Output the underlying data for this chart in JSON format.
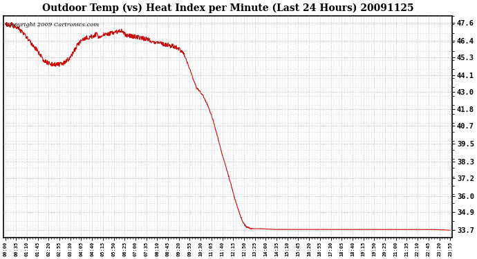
{
  "title": "Outdoor Temp (vs) Heat Index per Minute (Last 24 Hours) 20091125",
  "copyright_text": "Copyright 2009 Cartronics.com",
  "line_color": "#cc0000",
  "background_color": "#ffffff",
  "plot_bg_color": "#ffffff",
  "grid_color": "#999999",
  "yticks": [
    33.7,
    34.9,
    36.0,
    37.2,
    38.3,
    39.5,
    40.7,
    41.8,
    43.0,
    44.1,
    45.3,
    46.4,
    47.6
  ],
  "ylim": [
    33.2,
    48.1
  ],
  "xtick_labels_major": [
    "00:00",
    "00:35",
    "01:10",
    "01:45",
    "02:20",
    "02:55",
    "03:30",
    "04:05",
    "04:40",
    "05:15",
    "05:50",
    "06:25",
    "07:00",
    "07:35",
    "08:10",
    "08:45",
    "09:20",
    "09:55",
    "10:30",
    "11:05",
    "11:40",
    "12:15",
    "12:50",
    "13:25",
    "14:00",
    "14:35",
    "15:10",
    "15:45",
    "16:20",
    "16:55",
    "17:30",
    "18:05",
    "18:40",
    "19:15",
    "19:50",
    "20:25",
    "21:00",
    "21:35",
    "22:10",
    "22:45",
    "23:20",
    "23:55"
  ],
  "n_points": 1440,
  "y_data_keyframes": {
    "0": 47.5,
    "5": 47.5,
    "15": 47.4,
    "20": 47.55,
    "25": 47.4,
    "35": 47.35,
    "45": 47.2,
    "55": 47.0,
    "65": 46.8,
    "75": 46.5,
    "90": 46.1,
    "105": 45.7,
    "115": 45.4,
    "125": 45.1,
    "140": 44.9,
    "155": 44.82,
    "175": 44.82,
    "185": 44.85,
    "195": 45.0,
    "210": 45.3,
    "220": 45.6,
    "230": 46.0,
    "240": 46.3,
    "250": 46.45,
    "260": 46.6,
    "270": 46.65,
    "280": 46.7,
    "285": 46.75,
    "290": 46.8,
    "295": 46.85,
    "300": 46.7,
    "305": 46.6,
    "310": 46.75,
    "320": 46.8,
    "330": 46.85,
    "340": 46.9,
    "350": 46.95,
    "360": 47.0,
    "370": 47.05,
    "375": 47.1,
    "380": 46.95,
    "385": 46.85,
    "390": 46.8,
    "400": 46.75,
    "410": 46.7,
    "420": 46.7,
    "430": 46.65,
    "440": 46.6,
    "450": 46.55,
    "460": 46.5,
    "470": 46.4,
    "480": 46.35,
    "490": 46.3,
    "500": 46.25,
    "510": 46.2,
    "520": 46.15,
    "530": 46.1,
    "540": 46.05,
    "550": 46.0,
    "560": 45.9,
    "570": 45.7,
    "580": 45.4,
    "590": 44.9,
    "600": 44.3,
    "610": 43.7,
    "620": 43.2,
    "630": 43.0,
    "640": 42.7,
    "650": 42.3,
    "660": 41.8,
    "670": 41.2,
    "680": 40.5,
    "690": 39.7,
    "700": 38.9,
    "710": 38.2,
    "720": 37.5,
    "730": 36.8,
    "740": 36.0,
    "750": 35.3,
    "760": 34.7,
    "770": 34.2,
    "780": 33.9,
    "800": 33.8,
    "820": 33.8,
    "870": 33.75,
    "900": 33.75,
    "960": 33.75,
    "1020": 33.75,
    "1080": 33.75,
    "1140": 33.75,
    "1200": 33.75,
    "1260": 33.75,
    "1320": 33.75,
    "1380": 33.75,
    "1439": 33.7
  }
}
